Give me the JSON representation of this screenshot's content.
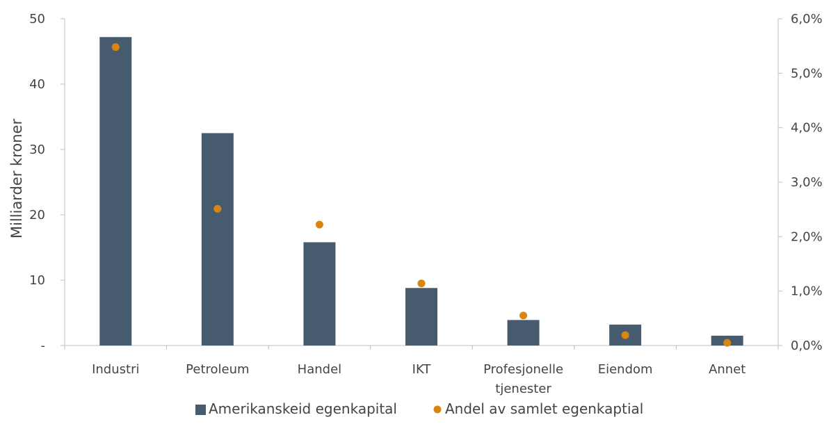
{
  "chart_data": {
    "type": "bar",
    "categories": [
      [
        "Industri"
      ],
      [
        "Petroleum"
      ],
      [
        "Handel"
      ],
      [
        "IKT"
      ],
      [
        "Profesjonelle",
        "tjenester"
      ],
      [
        "Eiendom"
      ],
      [
        "Annet"
      ]
    ],
    "series": [
      {
        "name": "Amerikanskeid egenkapital",
        "type": "bar",
        "axis": "left",
        "color": "#475b6e",
        "values": [
          47.2,
          32.5,
          15.8,
          8.8,
          3.9,
          3.2,
          1.5
        ]
      },
      {
        "name": "Andel av samlet egenkaptial",
        "type": "scatter",
        "axis": "right",
        "color": "#d9860f",
        "values": [
          0.0548,
          0.0251,
          0.0222,
          0.0114,
          0.0055,
          0.0019,
          0.0005
        ]
      }
    ],
    "ylabel": "Milliarder kroner",
    "ylim": [
      0,
      50
    ],
    "y_ticks": [
      {
        "value": 0,
        "label": "-"
      },
      {
        "value": 10,
        "label": "10"
      },
      {
        "value": 20,
        "label": "20"
      },
      {
        "value": 30,
        "label": "30"
      },
      {
        "value": 40,
        "label": "40"
      },
      {
        "value": 50,
        "label": "50"
      }
    ],
    "y2lim": [
      0,
      0.06
    ],
    "y2_ticks": [
      {
        "value": 0,
        "label": "0,0%"
      },
      {
        "value": 0.01,
        "label": "1,0%"
      },
      {
        "value": 0.02,
        "label": "2,0%"
      },
      {
        "value": 0.03,
        "label": "3,0%"
      },
      {
        "value": 0.04,
        "label": "4,0%"
      },
      {
        "value": 0.05,
        "label": "5,0%"
      },
      {
        "value": 0.06,
        "label": "6,0%"
      }
    ],
    "grid": false,
    "legend_position": "bottom-center",
    "axis_color": "#bfbfbf",
    "text_color": "#444444"
  }
}
